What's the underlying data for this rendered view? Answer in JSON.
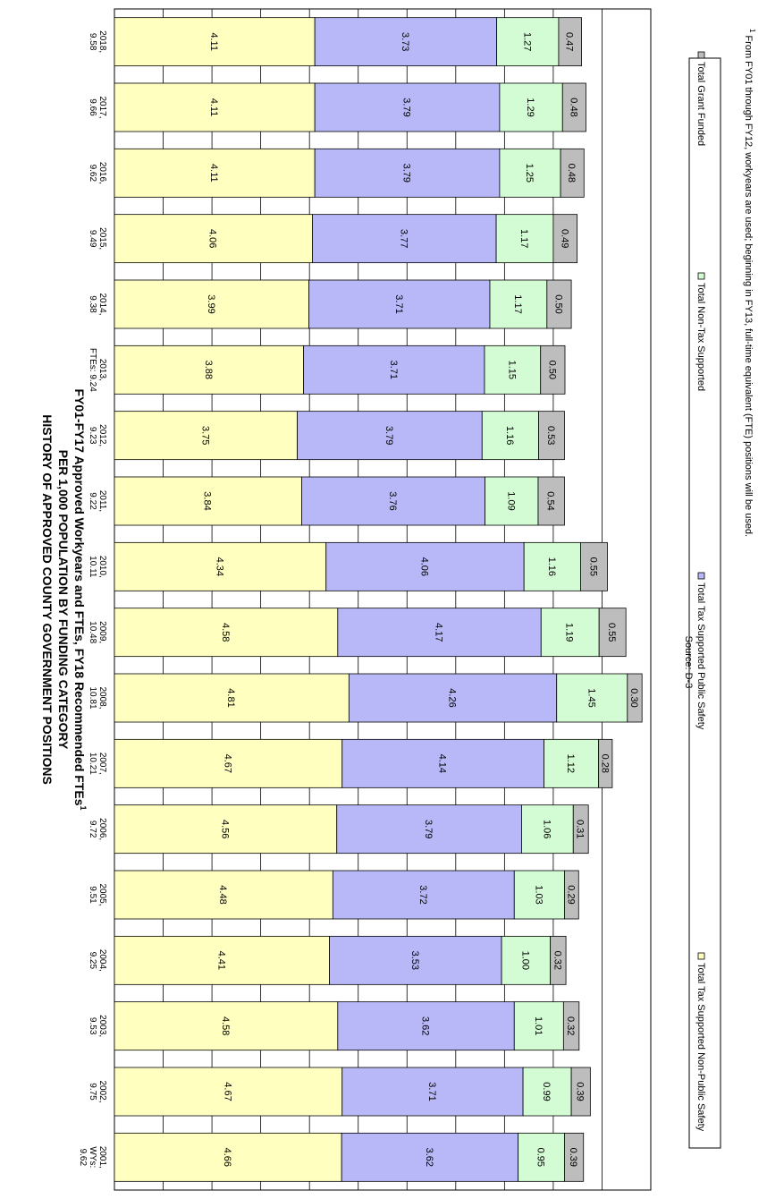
{
  "chart_data": {
    "type": "bar",
    "stacked": true,
    "orientation": "horizontal",
    "title": [
      "HISTORY OF APPROVED COUNTY GOVERNMENT POSITIONS",
      "PER 1,000 POPULATION BY FUNDING CATEGORY"
    ],
    "subtitle": "FY01-FY17 Approved Workyears and FTEs, FY18 Recommended FTEs",
    "subtitle_sup": "1",
    "xlim": [
      0,
      11
    ],
    "grid": true,
    "legend_position": "bottom",
    "categories": [
      [
        "2001,",
        "WYs:",
        "9.62"
      ],
      [
        "2002,",
        "9.75"
      ],
      [
        "2003,",
        "9.53"
      ],
      [
        "2004,",
        "9.25"
      ],
      [
        "2005,",
        "9.51"
      ],
      [
        "2006,",
        "9.72"
      ],
      [
        "2007,",
        "10.21"
      ],
      [
        "2008,",
        "10.81"
      ],
      [
        "2009,",
        "10.48"
      ],
      [
        "2010,",
        "10.11"
      ],
      [
        "2011,",
        "9.22"
      ],
      [
        "2012,",
        "9.23"
      ],
      [
        "2013,",
        "FTEs: 9.24"
      ],
      [
        "2014,",
        "9.38"
      ],
      [
        "2015,",
        "9.49"
      ],
      [
        "2016,",
        "9.62"
      ],
      [
        "2017,",
        "9.66"
      ],
      [
        "2018,",
        "9.58"
      ]
    ],
    "series": [
      {
        "name": "Total Tax Supported Non-Public Safety",
        "color": "#ffffc0",
        "labels": [
          "4.66",
          "4.67",
          "4.58",
          "4.41",
          "4.48",
          "4.56",
          "4.67",
          "4.81",
          "4.58",
          "4.34",
          "3.84",
          "3.75",
          "3.88",
          "3.99",
          "4.06",
          "4.11",
          "4.11",
          "4.11"
        ],
        "values": [
          4.66,
          4.67,
          4.58,
          4.41,
          4.48,
          4.56,
          4.67,
          4.81,
          4.58,
          4.34,
          3.84,
          3.75,
          3.88,
          3.99,
          4.06,
          4.11,
          4.11,
          4.11
        ]
      },
      {
        "name": "Total Tax Supported Public Safety",
        "color": "#b8b8f8",
        "labels": [
          "3.62",
          "3.71",
          "3.62",
          "3.53",
          "3.72",
          "3.79",
          "4.14",
          "4.26",
          "4.17",
          "4.06",
          "3.76",
          "3.79",
          "3.71",
          "3.71",
          "3.77",
          "3.79",
          "3.79",
          "3.73"
        ],
        "values": [
          3.62,
          3.71,
          3.62,
          3.53,
          3.72,
          3.79,
          4.14,
          4.26,
          4.17,
          4.06,
          3.76,
          3.79,
          3.71,
          3.71,
          3.77,
          3.79,
          3.79,
          3.73
        ]
      },
      {
        "name": "Total Non-Tax Supported",
        "color": "#d4fcd4",
        "labels": [
          "0.95",
          "0.99",
          "1.01",
          "1.00",
          "1.03",
          "1.06",
          "1.12",
          "1.45",
          "1.19",
          "1.16",
          "1.09",
          "1.16",
          "1.15",
          "1.17",
          "1.17",
          "1.25",
          "1.29",
          "1.27"
        ],
        "values": [
          0.95,
          0.99,
          1.01,
          1.0,
          1.03,
          1.06,
          1.12,
          1.45,
          1.19,
          1.16,
          1.09,
          1.16,
          1.15,
          1.17,
          1.17,
          1.25,
          1.29,
          1.27
        ]
      },
      {
        "name": "Total Grant Funded",
        "color": "#bdbdbd",
        "labels": [
          "0.39",
          "0.39",
          "0.32",
          "0.32",
          "0.29",
          "0.31",
          "0.28",
          "0.30",
          "0.55",
          "0.55",
          "0.54",
          "0.53",
          "0.50",
          "0.50",
          "0.49",
          "0.48",
          "0.48",
          "0.47"
        ],
        "values": [
          0.39,
          0.39,
          0.32,
          0.32,
          0.29,
          0.31,
          0.28,
          0.3,
          0.55,
          0.55,
          0.54,
          0.53,
          0.5,
          0.5,
          0.49,
          0.48,
          0.48,
          0.47
        ]
      }
    ],
    "source": "Source: D-3",
    "footnote_sup": "1",
    "footnote": "From FY01 through FY12, workyears are used; beginning in FY13, full-time equivalent (FTE) positions will be used."
  }
}
